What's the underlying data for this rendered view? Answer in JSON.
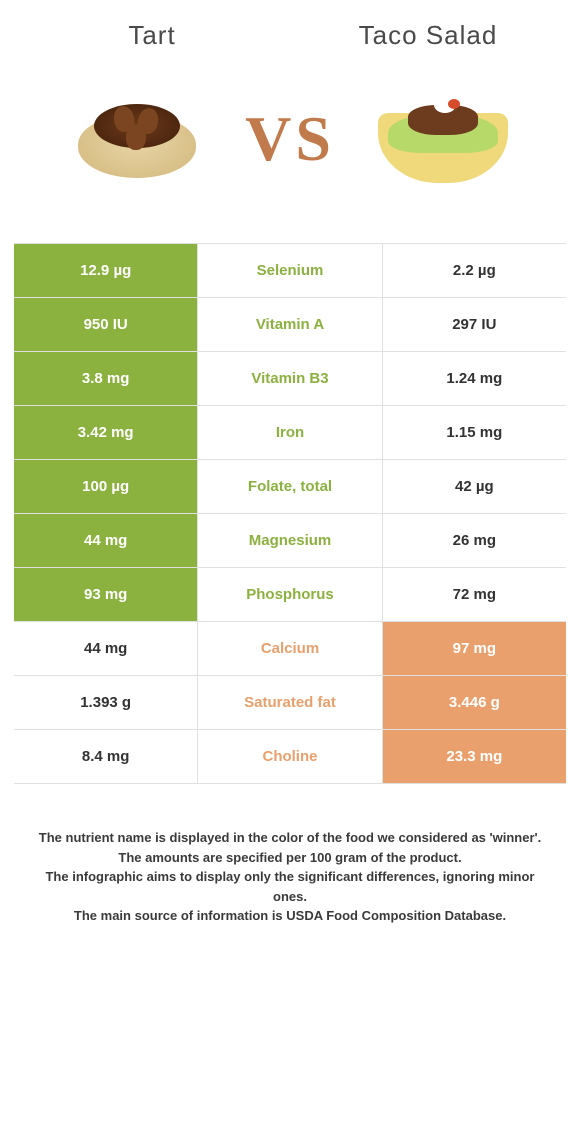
{
  "colors": {
    "left_winner_bg": "#8bb13f",
    "right_winner_bg": "#e9a06c",
    "left_label": "#8bb13f",
    "right_label": "#e9a06c",
    "vs_text": "#c17a4b",
    "border": "#e0e0e0",
    "background": "#ffffff",
    "header_text": "#4a4a4a",
    "footer_text": "#3a3a3a"
  },
  "typography": {
    "header_fontsize": 26,
    "vs_fontsize": 64,
    "cell_fontsize": 15,
    "footer_fontsize": 13
  },
  "header": {
    "left_title": "Tart",
    "right_title": "Taco Salad",
    "vs_label": "VS"
  },
  "table": {
    "type": "table",
    "columns": [
      "left_value",
      "nutrient",
      "right_value"
    ],
    "rows": [
      {
        "nutrient": "Selenium",
        "left": "12.9 µg",
        "right": "2.2 µg",
        "winner": "left"
      },
      {
        "nutrient": "Vitamin A",
        "left": "950 IU",
        "right": "297 IU",
        "winner": "left"
      },
      {
        "nutrient": "Vitamin B3",
        "left": "3.8 mg",
        "right": "1.24 mg",
        "winner": "left"
      },
      {
        "nutrient": "Iron",
        "left": "3.42 mg",
        "right": "1.15 mg",
        "winner": "left"
      },
      {
        "nutrient": "Folate, total",
        "left": "100 µg",
        "right": "42 µg",
        "winner": "left"
      },
      {
        "nutrient": "Magnesium",
        "left": "44 mg",
        "right": "26 mg",
        "winner": "left"
      },
      {
        "nutrient": "Phosphorus",
        "left": "93 mg",
        "right": "72 mg",
        "winner": "left"
      },
      {
        "nutrient": "Calcium",
        "left": "44 mg",
        "right": "97 mg",
        "winner": "right"
      },
      {
        "nutrient": "Saturated fat",
        "left": "1.393 g",
        "right": "3.446 g",
        "winner": "right"
      },
      {
        "nutrient": "Choline",
        "left": "8.4 mg",
        "right": "23.3 mg",
        "winner": "right"
      }
    ]
  },
  "footer": {
    "line1": "The nutrient name is displayed in the color of the food we considered as 'winner'.",
    "line2": "The amounts are specified per 100 gram of the product.",
    "line3": "The infographic aims to display only the significant differences, ignoring minor ones.",
    "line4": "The main source of information is USDA Food Composition Database."
  }
}
